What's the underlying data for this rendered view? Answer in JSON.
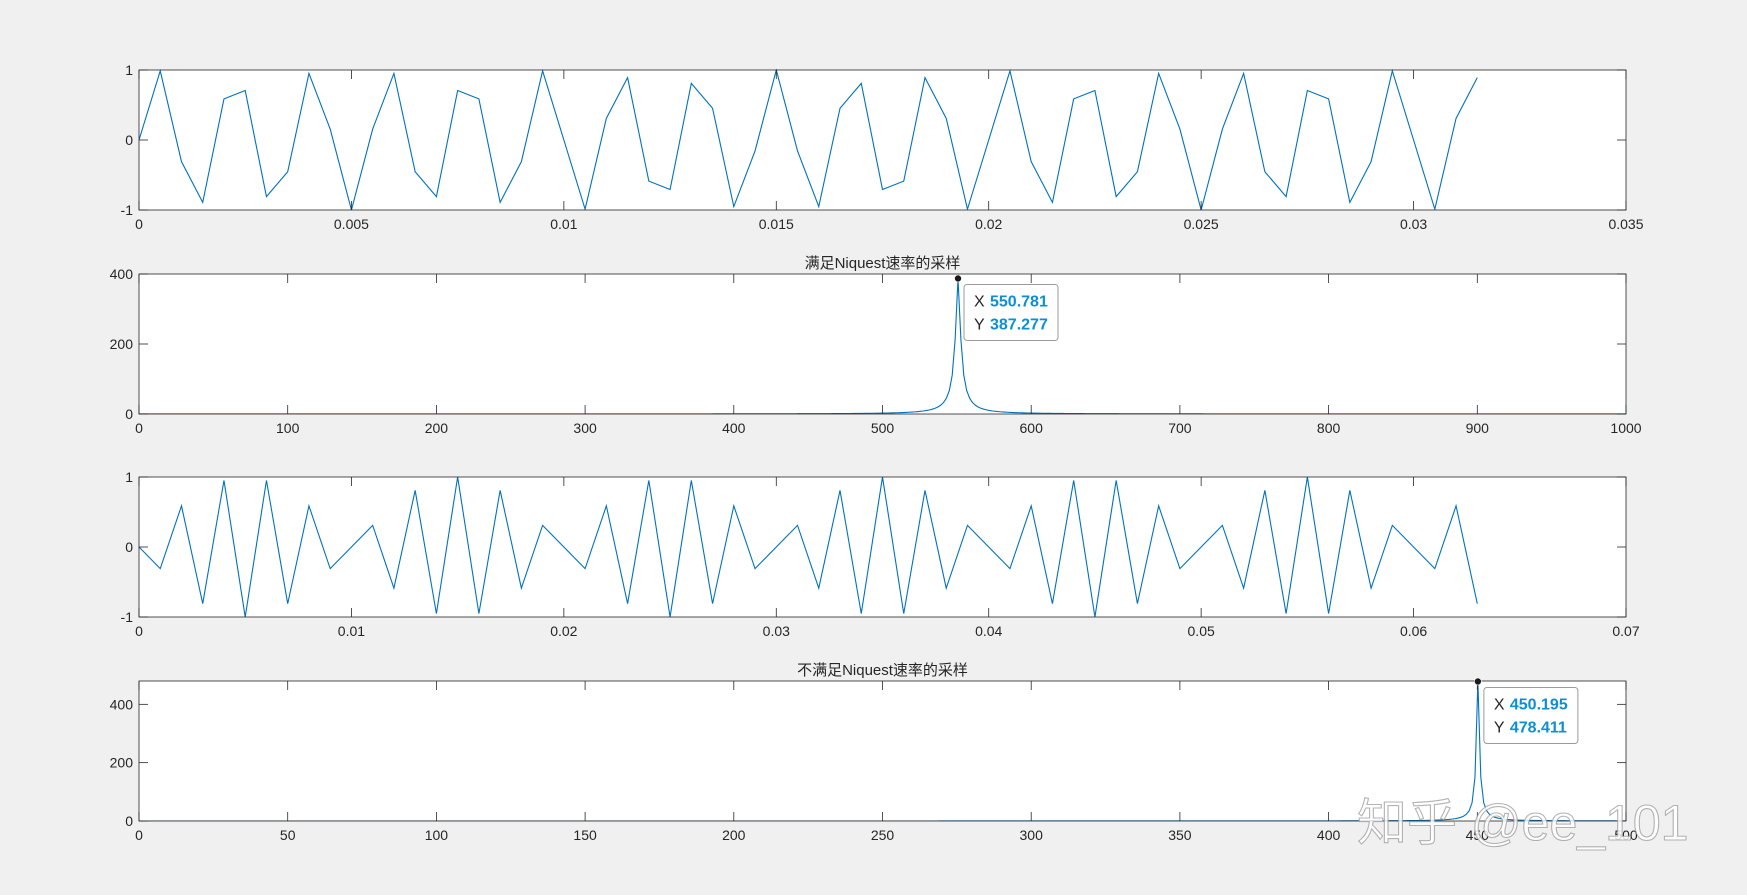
{
  "watermark": "知乎 @ee_101",
  "colors": {
    "background": "#f0f0f0",
    "axes_bg": "#ffffff",
    "axis": "#262626",
    "line": "#0072bd",
    "datatip_value": "#0b8fd6"
  },
  "chart_data": [
    {
      "id": "p1",
      "type": "line",
      "title": "",
      "xlim": [
        0,
        0.035
      ],
      "ylim": [
        -1,
        1
      ],
      "xticks": [
        0,
        0.005,
        0.01,
        0.015,
        0.02,
        0.025,
        0.03,
        0.035
      ],
      "xtick_labels": [
        "0",
        "0.005",
        "0.01",
        "0.015",
        "0.02",
        "0.025",
        "0.03",
        "0.035"
      ],
      "yticks": [
        -1,
        0,
        1
      ],
      "ytick_labels": [
        "-1",
        "0",
        "1"
      ],
      "signal": {
        "kind": "sine",
        "freq": 550,
        "fs": 2000,
        "n": 64
      }
    },
    {
      "id": "p2",
      "type": "line",
      "title": "满足Niquest速率的采样",
      "xlim": [
        0,
        1000
      ],
      "ylim": [
        0,
        400
      ],
      "xticks": [
        0,
        100,
        200,
        300,
        400,
        500,
        600,
        700,
        800,
        900,
        1000
      ],
      "xtick_labels": [
        "0",
        "100",
        "200",
        "300",
        "400",
        "500",
        "600",
        "700",
        "800",
        "900",
        "1000"
      ],
      "yticks": [
        0,
        200,
        400
      ],
      "ytick_labels": [
        "0",
        "200",
        "400"
      ],
      "spectrum": {
        "peak_x": 550.781,
        "peak_y": 387.277,
        "width": 2.2,
        "bins": 512
      },
      "datatip": {
        "x_label": "X",
        "x_value": "550.781",
        "y_label": "Y",
        "y_value": "387.277"
      }
    },
    {
      "id": "p3",
      "type": "line",
      "title": "",
      "xlim": [
        0,
        0.07
      ],
      "ylim": [
        -1,
        1
      ],
      "xticks": [
        0,
        0.01,
        0.02,
        0.03,
        0.04,
        0.05,
        0.06,
        0.07
      ],
      "xtick_labels": [
        "0",
        "0.01",
        "0.02",
        "0.03",
        "0.04",
        "0.05",
        "0.06",
        "0.07"
      ],
      "yticks": [
        -1,
        0,
        1
      ],
      "ytick_labels": [
        "-1",
        "0",
        "1"
      ],
      "signal": {
        "kind": "sine",
        "freq": 550,
        "fs": 1000,
        "n": 64
      }
    },
    {
      "id": "p4",
      "type": "line",
      "title": "不满足Niquest速率的采样",
      "xlim": [
        0,
        500
      ],
      "ylim": [
        0,
        480
      ],
      "xticks": [
        0,
        50,
        100,
        150,
        200,
        250,
        300,
        350,
        400,
        450,
        500
      ],
      "xtick_labels": [
        "0",
        "50",
        "100",
        "150",
        "200",
        "250",
        "300",
        "350",
        "400",
        "450",
        "500"
      ],
      "yticks": [
        0,
        200,
        400
      ],
      "ytick_labels": [
        "0",
        "200",
        "400"
      ],
      "spectrum": {
        "peak_x": 450.195,
        "peak_y": 478.411,
        "width": 0.6,
        "bins": 512
      },
      "datatip": {
        "x_label": "X",
        "x_value": "450.195",
        "y_label": "Y",
        "y_value": "478.411"
      }
    }
  ]
}
